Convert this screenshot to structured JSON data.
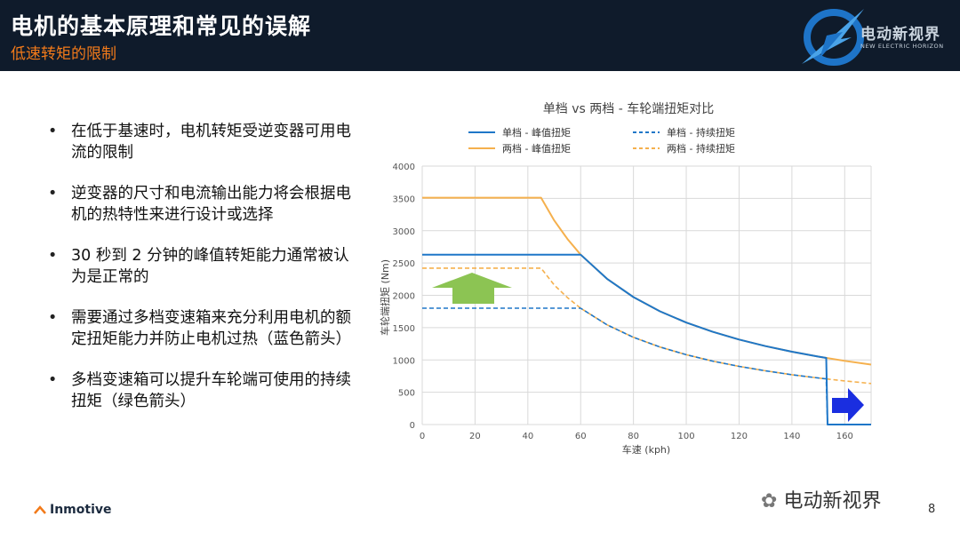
{
  "header": {
    "title": "电机的基本原理和常见的误解",
    "subtitle": "低速转矩的限制",
    "logo_text": "电动新视界",
    "logo_subtext": "NEW ELECTRIC HORIZON"
  },
  "bullets": [
    "在低于基速时，电机转矩受逆变器可用电流的限制",
    "逆变器的尺寸和电流输出能力将会根据电机的热特性来进行设计或选择",
    "30 秒到 2 分钟的峰值转矩能力通常被认为是正常的",
    "需要通过多档变速箱来充分利用电机的额定扭矩能力并防止电机过热（蓝色箭头）",
    "多档变速箱可以提升车轮端可使用的持续扭矩（绿色箭头）"
  ],
  "footer": {
    "brand": "Inmotive",
    "wechat_label": "电动新视界",
    "page_number": "8"
  },
  "colors": {
    "header_bg": "#0f1b2b",
    "accent_orange": "#f27a1a",
    "single_gear": "#1f77c8",
    "two_gear": "#f5b04d",
    "green_arrow": "#8cc453",
    "blue_arrow": "#1a2ee0"
  },
  "chart_data": {
    "type": "line",
    "title": "单档 vs 两档 - 车轮端扭矩对比",
    "xlabel": "车速 (kph)",
    "ylabel": "车轮端扭矩 (Nm)",
    "xlim": [
      0,
      170
    ],
    "ylim": [
      0,
      4000
    ],
    "xticks": [
      0,
      20,
      40,
      60,
      80,
      100,
      120,
      140,
      160
    ],
    "yticks": [
      0,
      500,
      1000,
      1500,
      2000,
      2500,
      3000,
      3500,
      4000
    ],
    "grid": true,
    "legend_position": "top",
    "series": [
      {
        "name": "单档 - 峰值扭矩",
        "style": "solid",
        "color": "#1f77c8",
        "x": [
          0,
          60,
          70,
          80,
          90,
          100,
          110,
          120,
          130,
          140,
          150,
          153,
          153.5,
          170
        ],
        "y": [
          2630,
          2630,
          2255,
          1973,
          1753,
          1578,
          1435,
          1315,
          1214,
          1127,
          1052,
          1031,
          0,
          0
        ]
      },
      {
        "name": "单档 - 持续扭矩",
        "style": "dashed",
        "color": "#1f77c8",
        "x": [
          0,
          60,
          70,
          80,
          90,
          100,
          110,
          120,
          130,
          140,
          150,
          153,
          153.5,
          170
        ],
        "y": [
          1800,
          1800,
          1543,
          1350,
          1200,
          1080,
          982,
          900,
          831,
          771,
          720,
          706,
          0,
          0
        ]
      },
      {
        "name": "两档 - 峰值扭矩",
        "style": "solid",
        "color": "#f5b04d",
        "x": [
          0,
          45,
          50,
          55,
          60,
          70,
          80,
          90,
          100,
          110,
          120,
          130,
          140,
          150,
          160,
          170
        ],
        "y": [
          3510,
          3510,
          3159,
          2871,
          2630,
          2255,
          1973,
          1753,
          1578,
          1435,
          1315,
          1214,
          1127,
          1052,
          986,
          928
        ]
      },
      {
        "name": "两档 - 持续扭矩",
        "style": "dashed",
        "color": "#f5b04d",
        "x": [
          0,
          45,
          50,
          55,
          60,
          70,
          80,
          90,
          100,
          110,
          120,
          130,
          140,
          150,
          160,
          170
        ],
        "y": [
          2420,
          2420,
          2160,
          1964,
          1800,
          1543,
          1350,
          1200,
          1080,
          982,
          900,
          831,
          771,
          720,
          675,
          635
        ]
      }
    ]
  }
}
